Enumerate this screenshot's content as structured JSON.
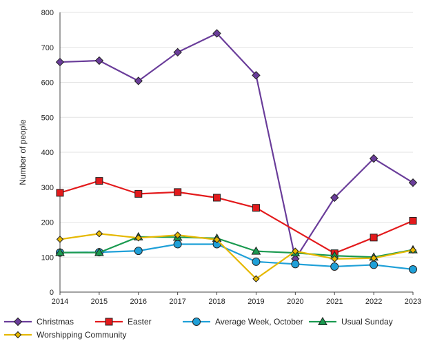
{
  "chart_data": {
    "type": "line",
    "title": "",
    "xlabel": "",
    "ylabel": "Number of people",
    "x": [
      "2014",
      "2015",
      "2016",
      "2017",
      "2018",
      "2019",
      "2020",
      "2021",
      "2022",
      "2023"
    ],
    "ylim": [
      0,
      800
    ],
    "yticks": [
      "0",
      "100",
      "200",
      "300",
      "400",
      "500",
      "600",
      "700",
      "800"
    ],
    "grid": true,
    "legend_position": "bottom",
    "series": [
      {
        "name": "Christmas",
        "color": "#6a3d9a",
        "marker": "diamond",
        "values": [
          658,
          662,
          604,
          686,
          740,
          620,
          95,
          270,
          382,
          313
        ]
      },
      {
        "name": "Easter",
        "color": "#e31a1c",
        "marker": "square",
        "values": [
          284,
          318,
          281,
          286,
          270,
          241,
          null,
          111,
          156,
          204
        ]
      },
      {
        "name": "Average Week, October",
        "color": "#1fa0d8",
        "marker": "circle",
        "values": [
          113,
          114,
          118,
          137,
          137,
          87,
          80,
          73,
          78,
          65
        ]
      },
      {
        "name": "Usual Sunday",
        "color": "#1a9a50",
        "marker": "triangle",
        "values": [
          113,
          113,
          158,
          157,
          154,
          117,
          112,
          104,
          100,
          121
        ]
      },
      {
        "name": "Worshipping Community",
        "color": "#e6b800",
        "marker": "diamond-small",
        "values": [
          151,
          167,
          155,
          163,
          150,
          38,
          117,
          95,
          97,
          120
        ]
      }
    ]
  }
}
